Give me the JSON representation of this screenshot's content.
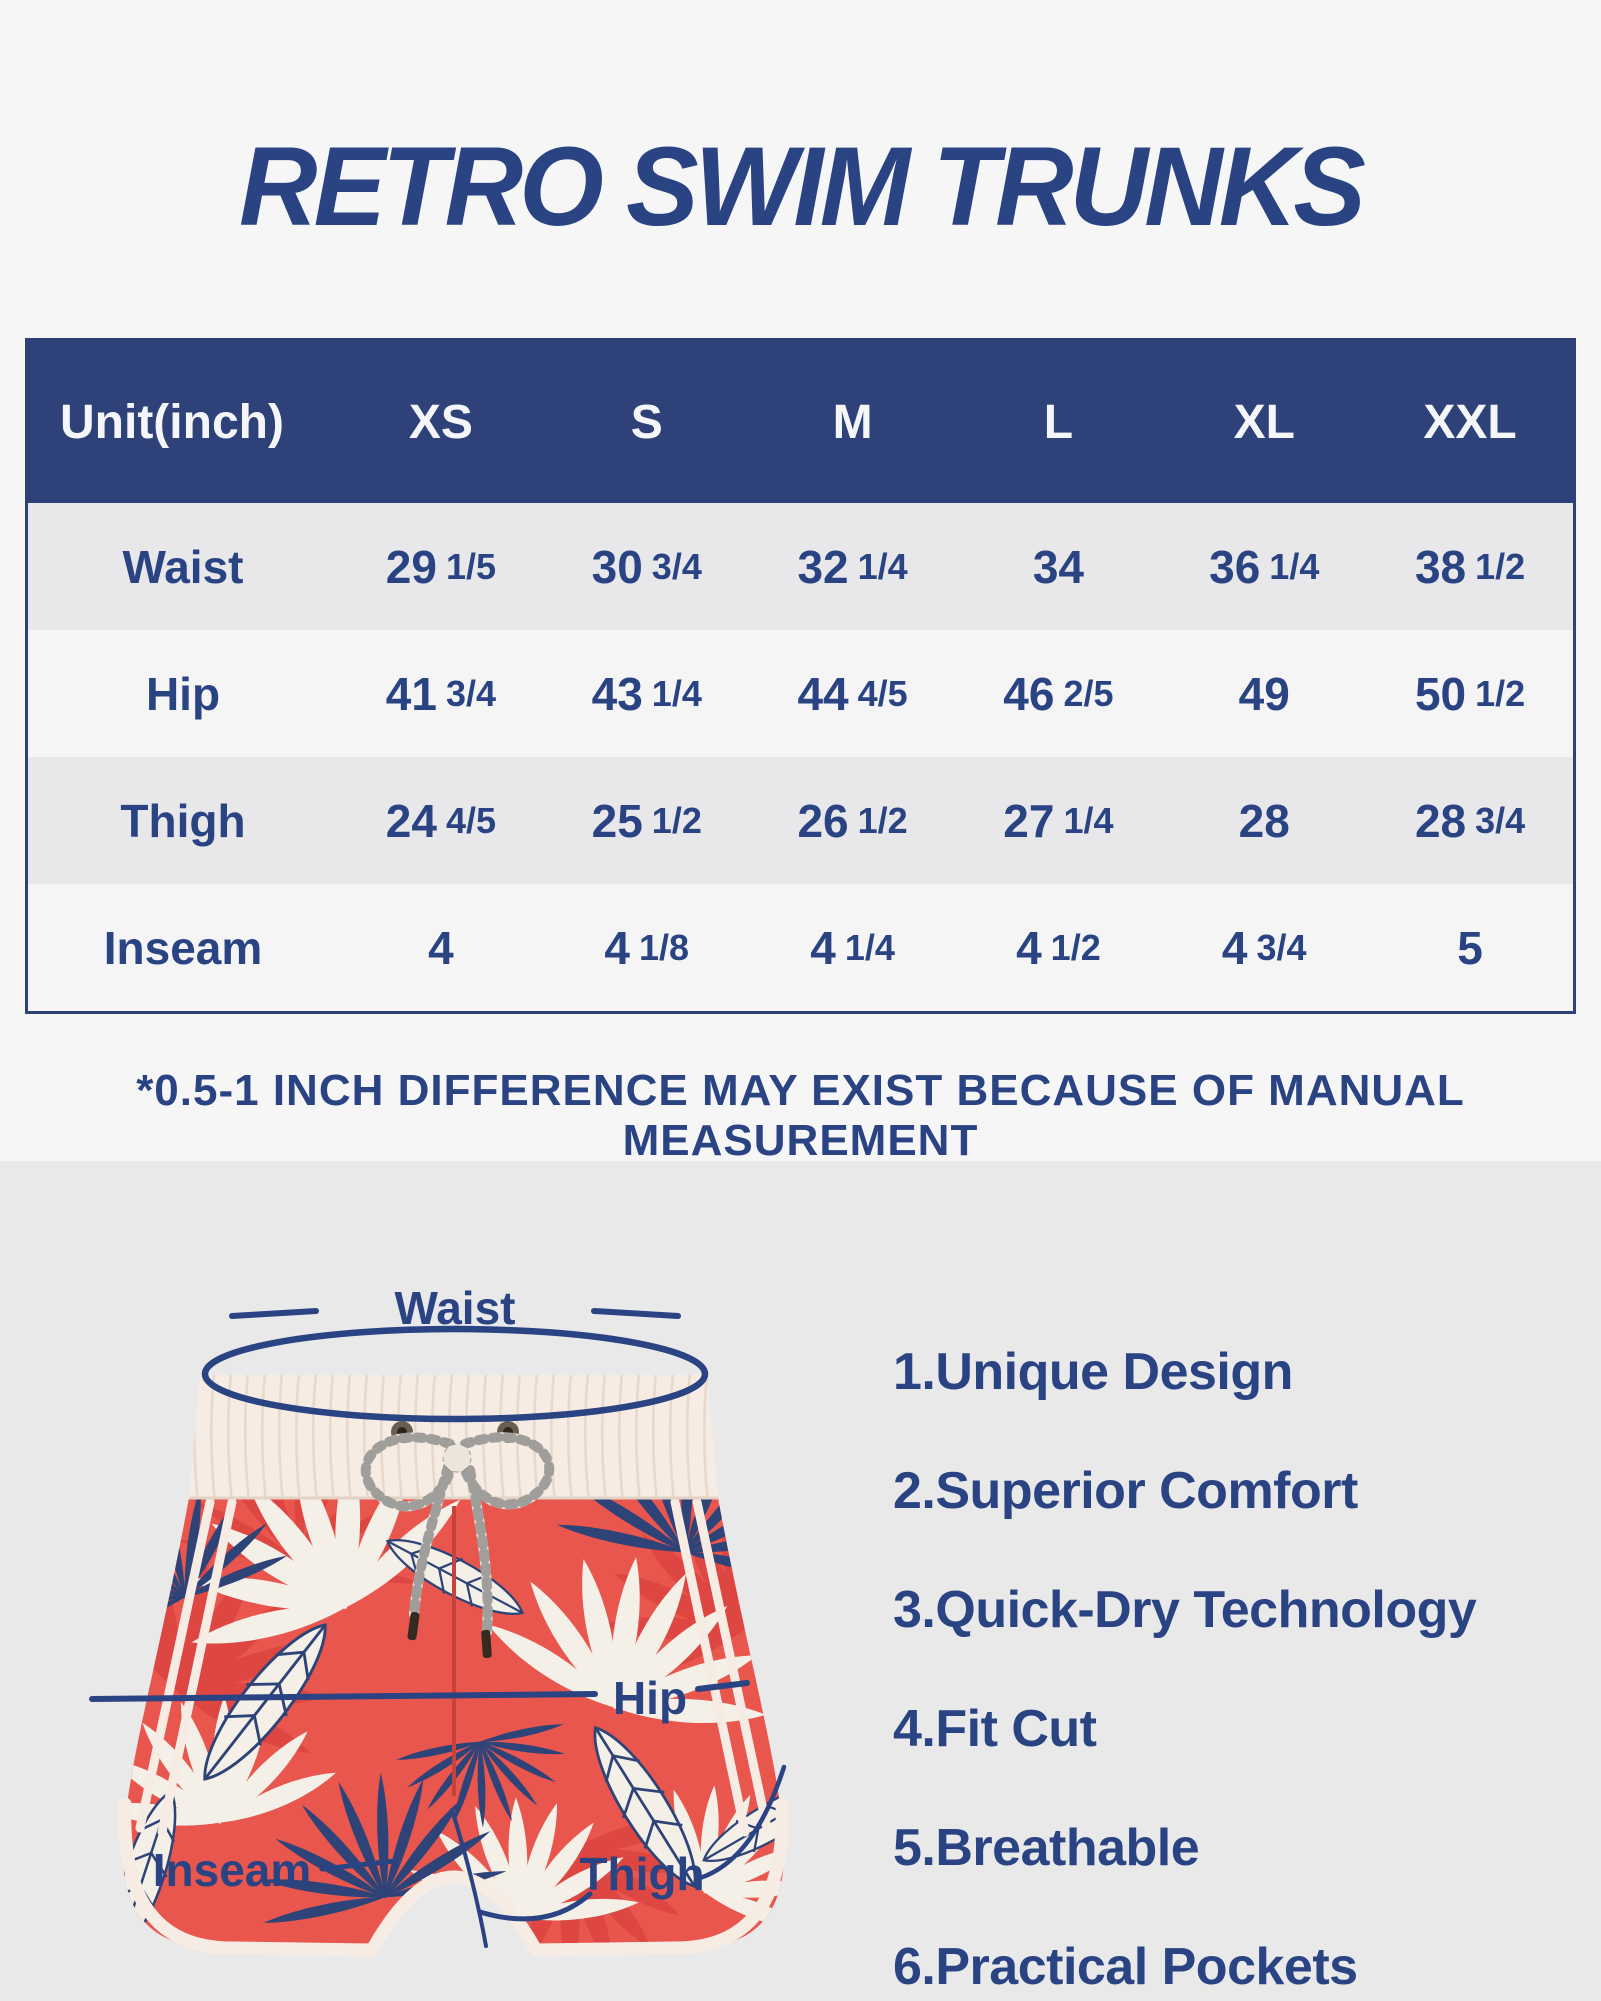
{
  "page": {
    "title": "RETRO SWIM TRUNKS",
    "note": "*0.5-1 INCH DIFFERENCE MAY EXIST BECAUSE OF MANUAL MEASUREMENT"
  },
  "size_table": {
    "unit_label": "Unit(inch)",
    "columns": [
      "XS",
      "S",
      "M",
      "L",
      "XL",
      "XXL"
    ],
    "rows": [
      {
        "label": "Waist",
        "values": [
          "29 1/5",
          "30 3/4",
          "32 1/4",
          "34",
          "36 1/4",
          "38 1/2"
        ]
      },
      {
        "label": "Hip",
        "values": [
          "41 3/4",
          "43 1/4",
          "44 4/5",
          "46 2/5",
          "49",
          "50 1/2"
        ]
      },
      {
        "label": "Thigh",
        "values": [
          "24 4/5",
          "25 1/2",
          "26 1/2",
          "27 1/4",
          "28",
          "28 3/4"
        ]
      },
      {
        "label": "Inseam",
        "values": [
          "4",
          "4 1/8",
          "4 1/4",
          "4 1/2",
          "4 3/4",
          "5"
        ]
      }
    ]
  },
  "diagram": {
    "labels": {
      "waist": "Waist",
      "hip": "Hip",
      "inseam": "Inseam",
      "thigh": "Thigh"
    }
  },
  "features": [
    "1.Unique Design",
    "2.Superior Comfort",
    "3.Quick-Dry Technology",
    "4.Fit Cut",
    "5.Breathable",
    "6.Practical Pockets"
  ],
  "colors": {
    "navy": "#2a4383",
    "header-bg": "#2e4279",
    "header-text": "#f4f6f9",
    "row-shaded": "#e8e8ea",
    "row-plain": "#f5f5f6",
    "bg-top": "#f6f6f7",
    "bg-bottom": "#e9e9ea",
    "coral": "#e9564d",
    "red-leaf": "#dc4540",
    "cream": "#f6ece3",
    "navy-leaf": "#2e4377",
    "white-leaf": "#f4efe7"
  }
}
